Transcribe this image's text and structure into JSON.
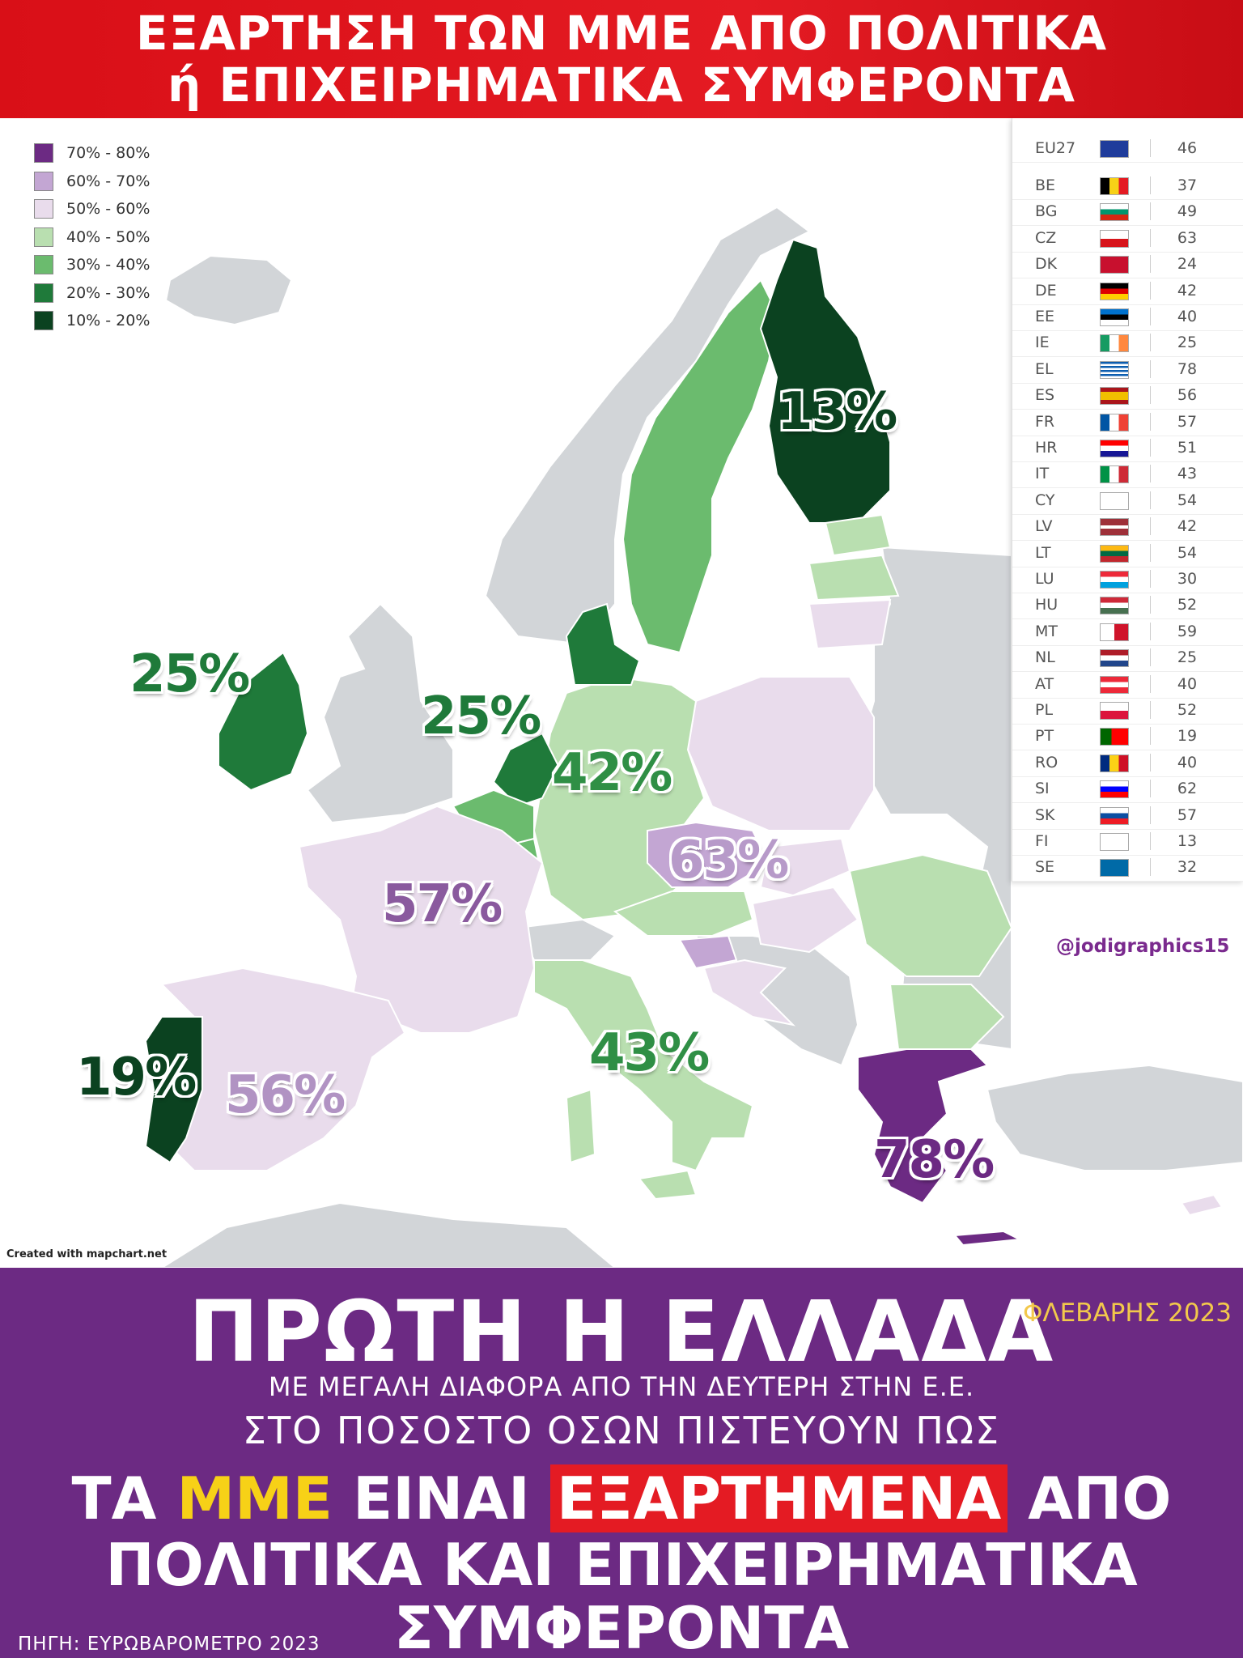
{
  "header": {
    "line1": "ΕΞΑΡΤΗΣΗ ΤΩΝ ΜΜΕ ΑΠΟ ΠΟΛΙΤΙΚΑ",
    "line2": "ή ΕΠΙΧΕΙΡΗΜΑΤΙΚΑ ΣΥΜΦΕΡΟΝΤΑ"
  },
  "legend": [
    {
      "label": "70% - 80%",
      "color": "#6c2a83"
    },
    {
      "label": "60% - 70%",
      "color": "#c3a6d3"
    },
    {
      "label": "50% - 60%",
      "color": "#e9dcec"
    },
    {
      "label": "40% - 50%",
      "color": "#b9dfb0"
    },
    {
      "label": "30% - 40%",
      "color": "#6bbb6e"
    },
    {
      "label": "20% - 30%",
      "color": "#1f7a3a"
    },
    {
      "label": "10% - 20%",
      "color": "#0b4220"
    }
  ],
  "map_labels": {
    "finland": "13%",
    "ireland": "25%",
    "netherlands": "25%",
    "germany": "42%",
    "czechia": "63%",
    "france": "57%",
    "portugal": "19%",
    "spain": "56%",
    "italy": "43%",
    "greece": "78%"
  },
  "table": [
    {
      "code": "EU27",
      "value": "46",
      "flag": "eu"
    },
    {
      "code": "BE",
      "value": "37",
      "flag": "be"
    },
    {
      "code": "BG",
      "value": "49",
      "flag": "bg"
    },
    {
      "code": "CZ",
      "value": "63",
      "flag": "cz"
    },
    {
      "code": "DK",
      "value": "24",
      "flag": "dk"
    },
    {
      "code": "DE",
      "value": "42",
      "flag": "de"
    },
    {
      "code": "EE",
      "value": "40",
      "flag": "ee"
    },
    {
      "code": "IE",
      "value": "25",
      "flag": "ie"
    },
    {
      "code": "EL",
      "value": "78",
      "flag": "el"
    },
    {
      "code": "ES",
      "value": "56",
      "flag": "es"
    },
    {
      "code": "FR",
      "value": "57",
      "flag": "fr"
    },
    {
      "code": "HR",
      "value": "51",
      "flag": "hr"
    },
    {
      "code": "IT",
      "value": "43",
      "flag": "it"
    },
    {
      "code": "CY",
      "value": "54",
      "flag": "cy"
    },
    {
      "code": "LV",
      "value": "42",
      "flag": "lv"
    },
    {
      "code": "LT",
      "value": "54",
      "flag": "lt"
    },
    {
      "code": "LU",
      "value": "30",
      "flag": "lu"
    },
    {
      "code": "HU",
      "value": "52",
      "flag": "hu"
    },
    {
      "code": "MT",
      "value": "59",
      "flag": "mt"
    },
    {
      "code": "NL",
      "value": "25",
      "flag": "nl"
    },
    {
      "code": "AT",
      "value": "40",
      "flag": "at"
    },
    {
      "code": "PL",
      "value": "52",
      "flag": "pl"
    },
    {
      "code": "PT",
      "value": "19",
      "flag": "pt"
    },
    {
      "code": "RO",
      "value": "40",
      "flag": "ro"
    },
    {
      "code": "SI",
      "value": "62",
      "flag": "si"
    },
    {
      "code": "SK",
      "value": "57",
      "flag": "sk"
    },
    {
      "code": "FI",
      "value": "13",
      "flag": "fi"
    },
    {
      "code": "SE",
      "value": "32",
      "flag": "se"
    }
  ],
  "credit": "Created with mapchart.net",
  "handle": "@jodigraphics15",
  "footer": {
    "headline": "ΠΡΩΤΗ Η ΕΛΛΑΔΑ",
    "date": "ΦΛΕΒΑΡΗΣ 2023",
    "sub1": "ΜΕ ΜΕΓΑΛΗ ΔΙΑΦΟΡΑ ΑΠΟ ΤΗΝ ΔΕΥΤΕΡΗ ΣΤΗΝ Ε.Ε.",
    "sub2": "ΣΤΟ ΠΟΣΟΣΤΟ ΟΣΩΝ ΠΙΣΤΕΥΟΥΝ ΠΩΣ",
    "big_pre": "ΤΑ ",
    "big_mme": "ΜΜΕ",
    "big_mid": " ΕΙΝΑΙ ",
    "big_hl": "ΕΞΑΡΤΗΜΕΝΑ",
    "big_post": " ΑΠΟ",
    "line2": "ΠΟΛΙΤΙΚΑ ΚΑΙ ΕΠΙΧΕΙΡΗΜΑΤΙΚΑ",
    "line3": "ΣΥΜΦΕΡΟΝΤΑ",
    "source": "ΠΗΓΗ: ΕΥΡΩΒΑΡΟΜΕΤΡΟ 2023"
  }
}
